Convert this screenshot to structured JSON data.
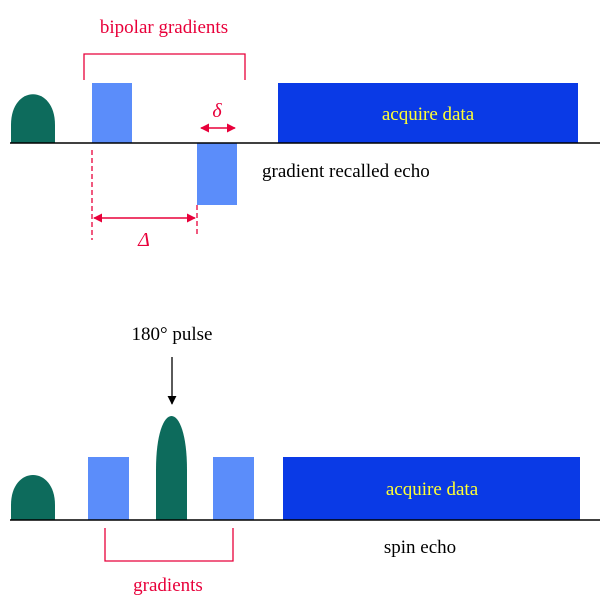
{
  "colors": {
    "pulse": "#0d6b5c",
    "gradient": "#5b8dfa",
    "acquire": "#0a3ae6",
    "acquire_text": "#ffff33",
    "annotation": "#e8003a",
    "text": "#000000",
    "axis": "#000000"
  },
  "top": {
    "bracket_label": "bipolar gradients",
    "acquire_label": "acquire data",
    "delta_small": "δ",
    "delta_big": "Δ",
    "echo_label": "gradient recalled echo"
  },
  "bottom": {
    "pulse_label": "180° pulse",
    "acquire_label": "acquire data",
    "echo_label": "spin echo",
    "bracket_label": "gradients"
  }
}
